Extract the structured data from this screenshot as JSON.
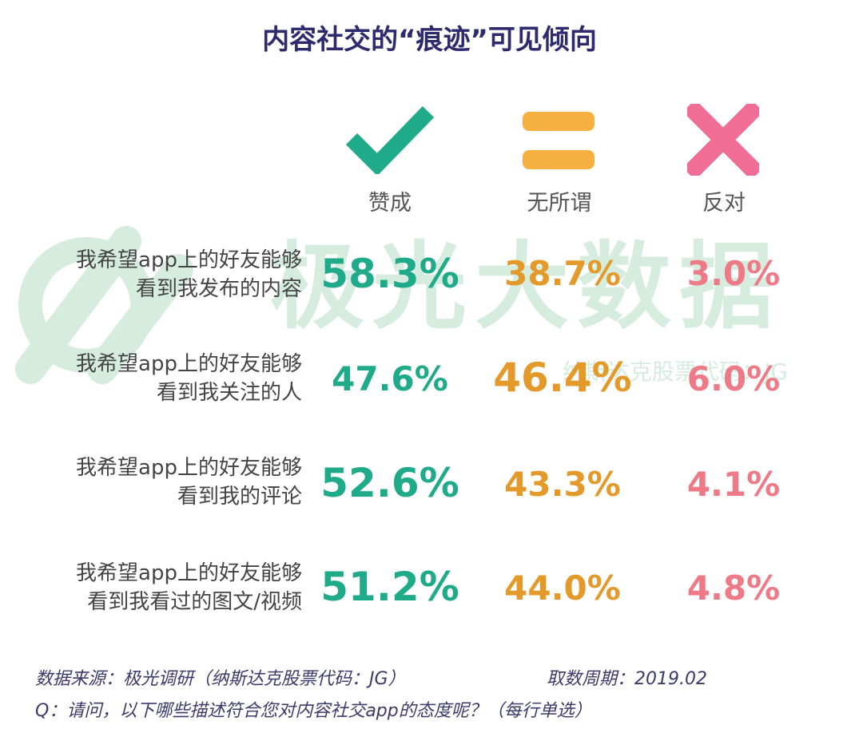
{
  "title": "内容社交的“痕迹”可见倾向",
  "watermark": {
    "brand": "极光大数据",
    "stock": "纳斯达克股票代码：JG"
  },
  "columns": [
    {
      "label": "赞成",
      "icon": "check-icon",
      "color": "#1fab8a"
    },
    {
      "label": "无所谓",
      "icon": "equals-icon",
      "color": "#f5b041"
    },
    {
      "label": "反对",
      "icon": "cross-icon",
      "color": "#f06d96"
    }
  ],
  "rows": [
    {
      "line1": "我希望app上的好友能够",
      "line2": "看到我发布的内容",
      "agree": "58.3%",
      "neutral": "38.7%",
      "oppose": "3.0%"
    },
    {
      "line1": "我希望app上的好友能够",
      "line2": "看到我关注的人",
      "agree": "47.6%",
      "neutral": "46.4%",
      "oppose": "6.0%"
    },
    {
      "line1": "我希望app上的好友能够",
      "line2": "看到我的评论",
      "agree": "52.6%",
      "neutral": "43.3%",
      "oppose": "4.1%"
    },
    {
      "line1": "我希望app上的好友能够",
      "line2": "看到我看过的图文/视频",
      "agree": "51.2%",
      "neutral": "44.0%",
      "oppose": "4.8%"
    }
  ],
  "chart_data": {
    "type": "table",
    "title": "内容社交的“痕迹”可见倾向",
    "columns": [
      "赞成",
      "无所谓",
      "反对"
    ],
    "categories": [
      "我希望app上的好友能够看到我发布的内容",
      "我希望app上的好友能够看到我关注的人",
      "我希望app上的好友能够看到我的评论",
      "我希望app上的好友能够看到我看过的图文/视频"
    ],
    "series": [
      {
        "name": "赞成",
        "values": [
          58.3,
          47.6,
          52.6,
          51.2
        ]
      },
      {
        "name": "无所谓",
        "values": [
          38.7,
          46.4,
          43.3,
          44.0
        ]
      },
      {
        "name": "反对",
        "values": [
          3.0,
          6.0,
          4.1,
          4.8
        ]
      }
    ]
  },
  "footer": {
    "source": "数据来源：极光调研（纳斯达克股票代码：JG）",
    "period": "取数周期：2019.02",
    "question": "Q：请问，以下哪些描述符合您对内容社交app的态度呢？（每行单选）"
  }
}
